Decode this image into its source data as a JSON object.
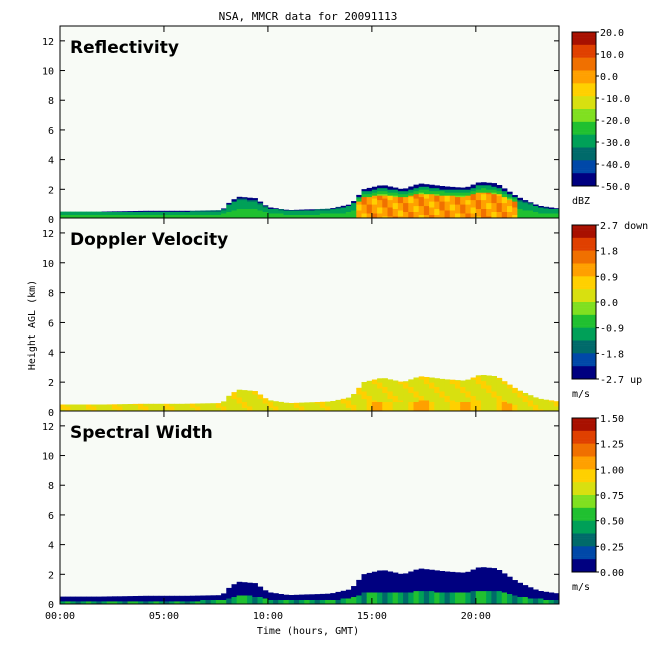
{
  "figure_title": "NSA, MMCR data for 20091113",
  "shared_ylabel": "Height AGL (km)",
  "shared_xlabel": "Time (hours, GMT)",
  "x_ticks": [
    "00:00",
    "05:00",
    "10:00",
    "15:00",
    "20:00"
  ],
  "y_ticks": [
    "0",
    "2",
    "4",
    "6",
    "8",
    "10",
    "12"
  ],
  "colors": {
    "background": "#ffffff",
    "plot_background": "#f8fbf6",
    "colormap": [
      "#000080",
      "#0048a8",
      "#006a6a",
      "#00a058",
      "#20c030",
      "#80e020",
      "#d8e010",
      "#ffd000",
      "#ffa000",
      "#f07000",
      "#e04000",
      "#a81000"
    ]
  },
  "chart_data": [
    {
      "type": "heatmap",
      "title": "Reflectivity",
      "xlabel": "Time (hours, GMT)",
      "ylabel": "Height AGL (km)",
      "xlim": [
        0,
        24
      ],
      "ylim": [
        0,
        13
      ],
      "colorbar": {
        "ticks": [
          "20.0",
          "10.0",
          "0.0",
          "-10.0",
          "-20.0",
          "-30.0",
          "-40.0",
          "-50.0"
        ],
        "unit": "dBZ",
        "range": [
          -50,
          20
        ]
      },
      "cloud_top_profile_km": [
        [
          0,
          0.5
        ],
        [
          2,
          0.5
        ],
        [
          4,
          0.55
        ],
        [
          6,
          0.55
        ],
        [
          7.8,
          0.6
        ],
        [
          8.2,
          1.2
        ],
        [
          8.6,
          1.5
        ],
        [
          9.4,
          1.4
        ],
        [
          10,
          0.8
        ],
        [
          11,
          0.6
        ],
        [
          13,
          0.7
        ],
        [
          14,
          1.0
        ],
        [
          14.6,
          2.0
        ],
        [
          15.5,
          2.3
        ],
        [
          16.5,
          2.0
        ],
        [
          17.3,
          2.4
        ],
        [
          18.5,
          2.2
        ],
        [
          19.5,
          2.1
        ],
        [
          20.2,
          2.5
        ],
        [
          21,
          2.4
        ],
        [
          22,
          1.5
        ],
        [
          23,
          0.9
        ],
        [
          24,
          0.7
        ]
      ],
      "typical_values": {
        "low_cloud": -20,
        "deep_cloud_core": 0,
        "cloud_edges": -45
      }
    },
    {
      "type": "heatmap",
      "title": "Doppler Velocity",
      "xlabel": "Time (hours, GMT)",
      "ylabel": "Height AGL (km)",
      "xlim": [
        0,
        24
      ],
      "ylim": [
        0,
        13
      ],
      "colorbar": {
        "ticks": [
          "2.7 down",
          "1.8",
          "0.9",
          "0.0",
          "-0.9",
          "-1.8",
          "-2.7 up"
        ],
        "unit": "m/s",
        "range": [
          -2.7,
          2.7
        ]
      },
      "cloud_top_profile_km": [
        [
          0,
          0.5
        ],
        [
          2,
          0.5
        ],
        [
          4,
          0.55
        ],
        [
          6,
          0.55
        ],
        [
          7.8,
          0.6
        ],
        [
          8.2,
          1.2
        ],
        [
          8.6,
          1.5
        ],
        [
          9.4,
          1.4
        ],
        [
          10,
          0.8
        ],
        [
          11,
          0.6
        ],
        [
          13,
          0.7
        ],
        [
          14,
          1.0
        ],
        [
          14.6,
          2.0
        ],
        [
          15.5,
          2.3
        ],
        [
          16.5,
          2.0
        ],
        [
          17.3,
          2.4
        ],
        [
          18.5,
          2.2
        ],
        [
          19.5,
          2.1
        ],
        [
          20.2,
          2.5
        ],
        [
          21,
          2.4
        ],
        [
          22,
          1.5
        ],
        [
          23,
          0.9
        ],
        [
          24,
          0.7
        ]
      ],
      "typical_values": {
        "cloud": 0.3,
        "strong_fall": 1.5
      }
    },
    {
      "type": "heatmap",
      "title": "Spectral Width",
      "xlabel": "Time (hours, GMT)",
      "ylabel": "Height AGL (km)",
      "xlim": [
        0,
        24
      ],
      "ylim": [
        0,
        13
      ],
      "colorbar": {
        "ticks": [
          "1.50",
          "1.25",
          "1.00",
          "0.75",
          "0.50",
          "0.25",
          "0.00"
        ],
        "unit": "m/s",
        "range": [
          0,
          1.5
        ]
      },
      "cloud_top_profile_km": [
        [
          0,
          0.5
        ],
        [
          2,
          0.5
        ],
        [
          4,
          0.55
        ],
        [
          6,
          0.55
        ],
        [
          7.8,
          0.6
        ],
        [
          8.2,
          1.2
        ],
        [
          8.6,
          1.5
        ],
        [
          9.4,
          1.4
        ],
        [
          10,
          0.8
        ],
        [
          11,
          0.6
        ],
        [
          13,
          0.7
        ],
        [
          14,
          1.0
        ],
        [
          14.6,
          2.0
        ],
        [
          15.5,
          2.3
        ],
        [
          16.5,
          2.0
        ],
        [
          17.3,
          2.4
        ],
        [
          18.5,
          2.2
        ],
        [
          19.5,
          2.1
        ],
        [
          20.2,
          2.5
        ],
        [
          21,
          2.4
        ],
        [
          22,
          1.5
        ],
        [
          23,
          0.9
        ],
        [
          24,
          0.7
        ]
      ],
      "typical_values": {
        "upper_cloud": 0.05,
        "lower_cloud": 0.45
      }
    }
  ]
}
